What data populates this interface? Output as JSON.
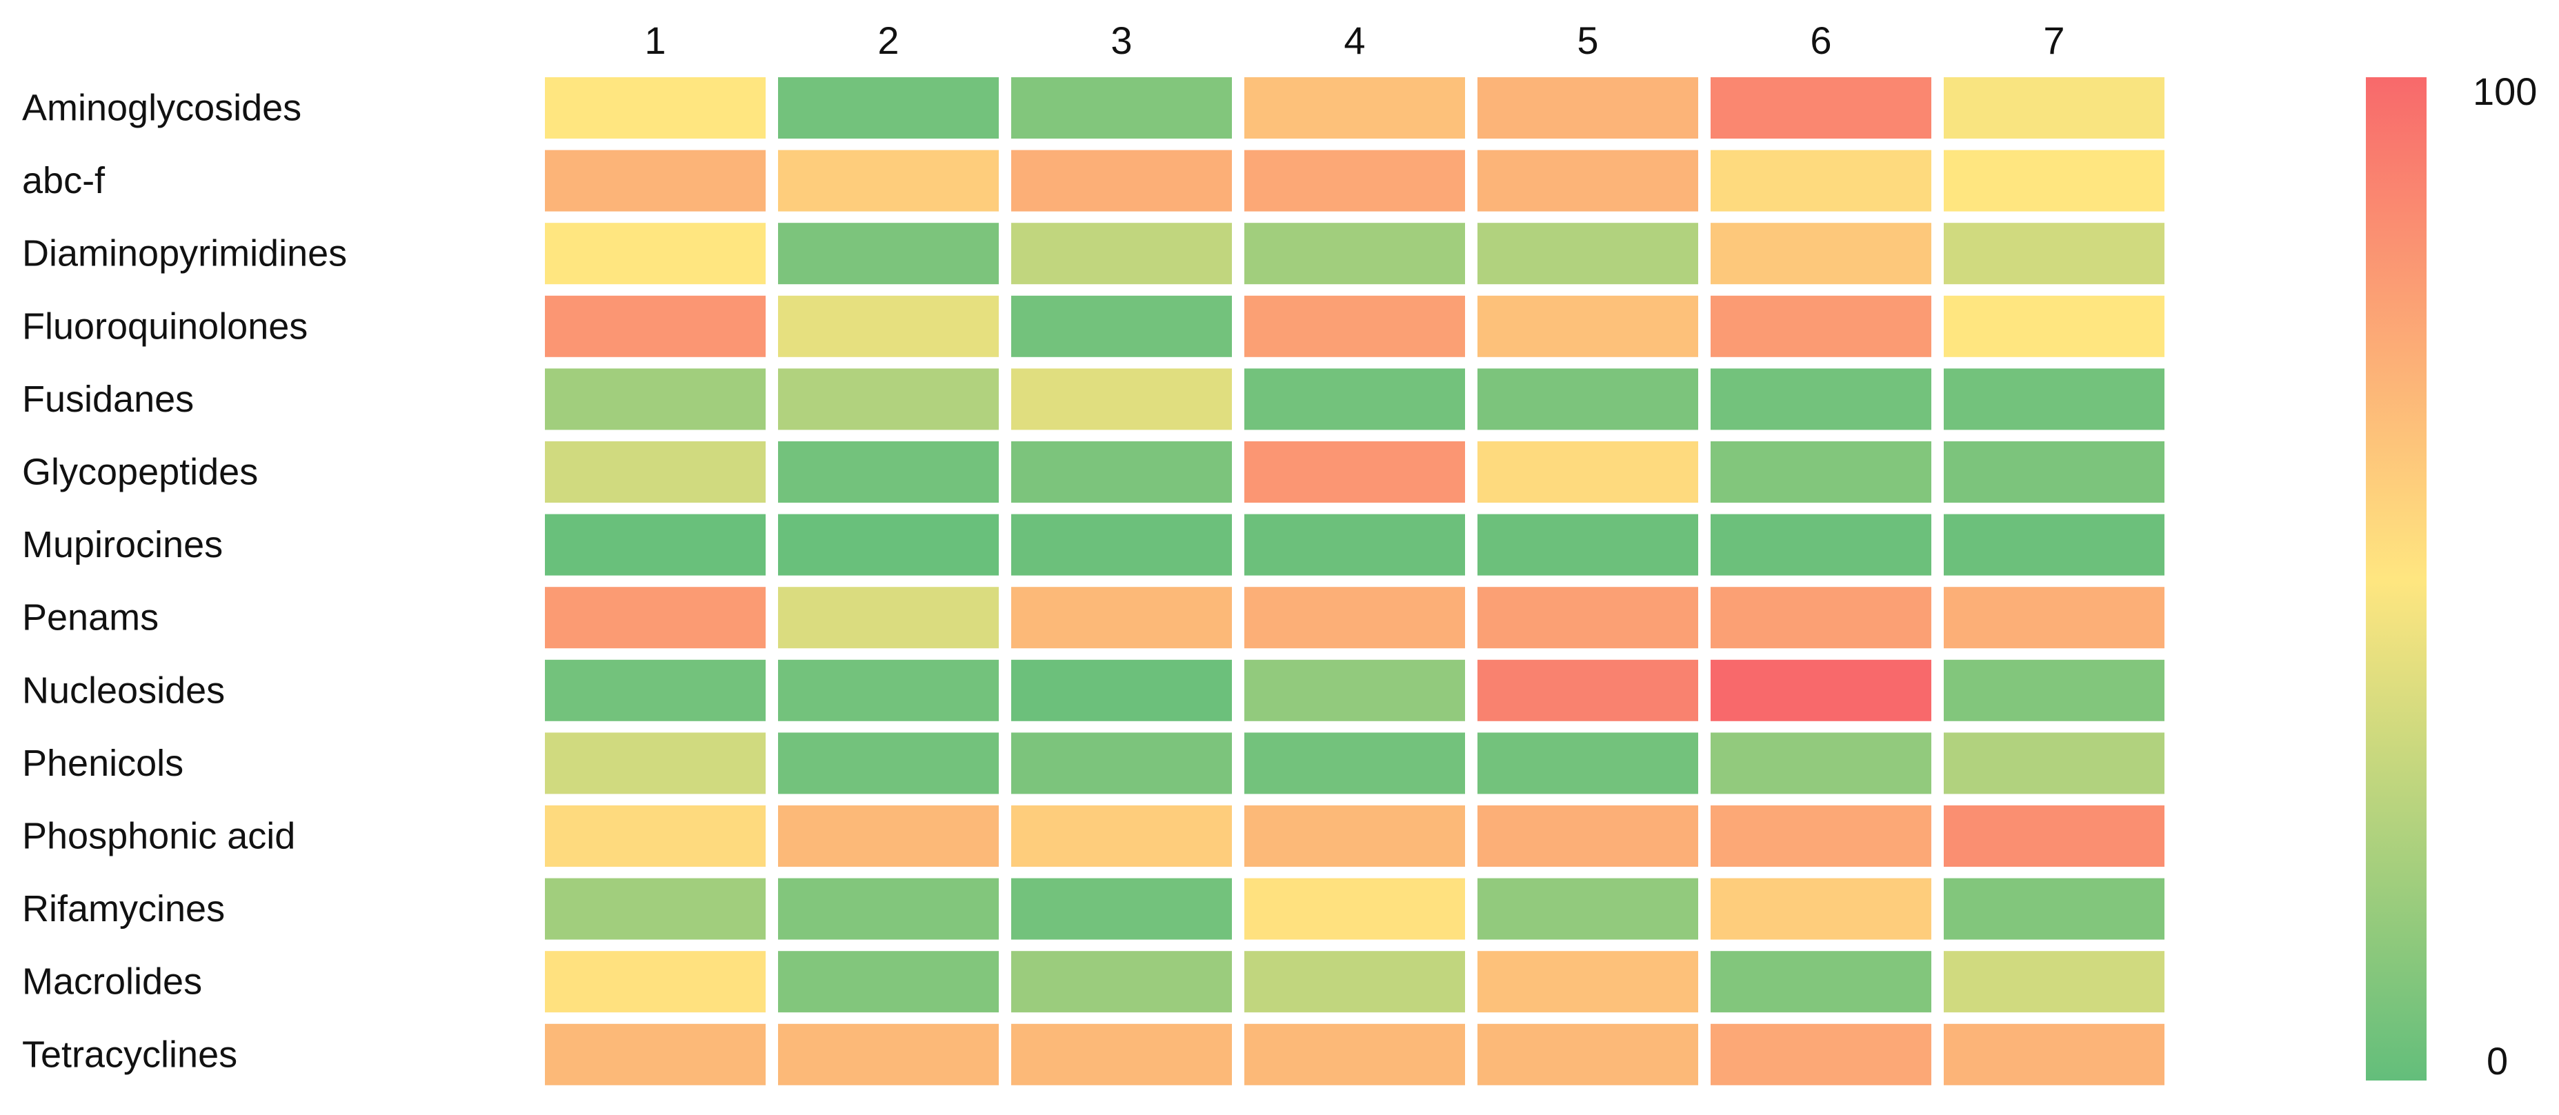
{
  "chart_data": {
    "type": "heatmap",
    "title": "",
    "xlabel": "",
    "ylabel": "",
    "columns": [
      "1",
      "2",
      "3",
      "4",
      "5",
      "6",
      "7"
    ],
    "rows": [
      "Aminoglycosides",
      "abc-f",
      "Diaminopyrimidines",
      "Fluoroquinolones",
      "Fusidanes",
      "Glycopeptides",
      "Mupirocines",
      "Penams",
      "Nucleosides",
      "Phenicols",
      "Phosphonic acid",
      "Rifamycines",
      "Macrolides",
      "Tetracyclines"
    ],
    "values": [
      [
        50,
        5,
        10,
        65,
        70,
        88,
        48
      ],
      [
        70,
        60,
        72,
        75,
        70,
        55,
        50
      ],
      [
        50,
        8,
        30,
        20,
        25,
        62,
        35
      ],
      [
        82,
        42,
        5,
        78,
        65,
        80,
        50
      ],
      [
        20,
        25,
        40,
        5,
        8,
        5,
        5
      ],
      [
        35,
        5,
        8,
        82,
        55,
        10,
        8
      ],
      [
        2,
        2,
        3,
        3,
        3,
        3,
        3
      ],
      [
        80,
        38,
        68,
        72,
        78,
        78,
        72
      ],
      [
        5,
        5,
        3,
        15,
        90,
        100,
        10
      ],
      [
        35,
        5,
        8,
        5,
        5,
        15,
        25
      ],
      [
        55,
        68,
        60,
        68,
        72,
        75,
        85
      ],
      [
        20,
        10,
        5,
        52,
        15,
        60,
        10
      ],
      [
        52,
        10,
        18,
        30,
        65,
        10,
        35
      ],
      [
        68,
        68,
        68,
        68,
        68,
        75,
        70
      ]
    ],
    "colorbar": {
      "min": 0,
      "max": 100,
      "min_label": "0",
      "max_label": "100",
      "colors": [
        "#63be7b",
        "#ffe680",
        "#f8696b"
      ]
    },
    "legend": "right"
  }
}
